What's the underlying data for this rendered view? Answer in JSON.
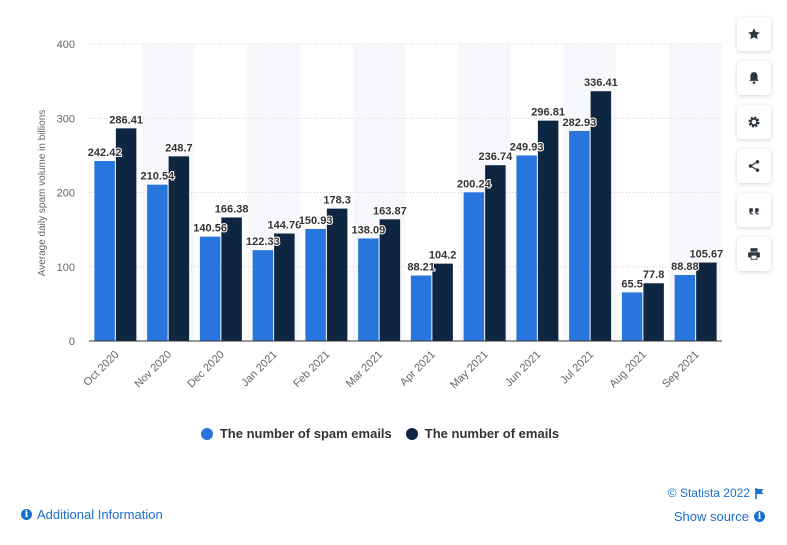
{
  "chart_data": {
    "type": "bar",
    "categories": [
      "Oct 2020",
      "Nov 2020",
      "Dec 2020",
      "Jan 2021",
      "Feb 2021",
      "Mar 2021",
      "Apr 2021",
      "May 2021",
      "Jun 2021",
      "Jul 2021",
      "Aug 2021",
      "Sep 2021"
    ],
    "series": [
      {
        "name": "The number of spam emails",
        "color": "#2876dd",
        "values": [
          242.42,
          210.54,
          140.56,
          122.33,
          150.93,
          138.09,
          88.21,
          200.24,
          249.93,
          282.93,
          65.5,
          88.88
        ],
        "labels": [
          "242.42",
          "210.54",
          "140.56",
          "122.33",
          "150.93",
          "138.09",
          "88.21",
          "200.24",
          "249.93",
          "282.93",
          "65.5",
          "88.88"
        ]
      },
      {
        "name": "The number of emails",
        "color": "#0f2642",
        "values": [
          286.41,
          248.7,
          166.38,
          144.76,
          178.3,
          163.87,
          104.2,
          236.74,
          296.81,
          336.41,
          77.8,
          105.67
        ],
        "labels": [
          "286.41",
          "248.7",
          "166.38",
          "144.76",
          "178.3",
          "163.87",
          "104.2",
          "236.74",
          "296.81",
          "336.41",
          "77.8",
          "105.67"
        ]
      }
    ],
    "ylabel": "Average daily spam volume in billions",
    "ylim": [
      0,
      400
    ],
    "yticks": [
      0,
      100,
      200,
      300,
      400
    ],
    "ytick_labels": [
      "0",
      "100",
      "200",
      "300",
      "400"
    ],
    "grid": true,
    "legend_position": "bottom-center"
  },
  "sidebar": {
    "icons": [
      "star-icon",
      "bell-icon",
      "gear-icon",
      "share-icon",
      "quote-icon",
      "print-icon"
    ]
  },
  "footer": {
    "additional_info": "Additional Information",
    "credit": "© Statista 2022",
    "show_source": "Show source"
  }
}
